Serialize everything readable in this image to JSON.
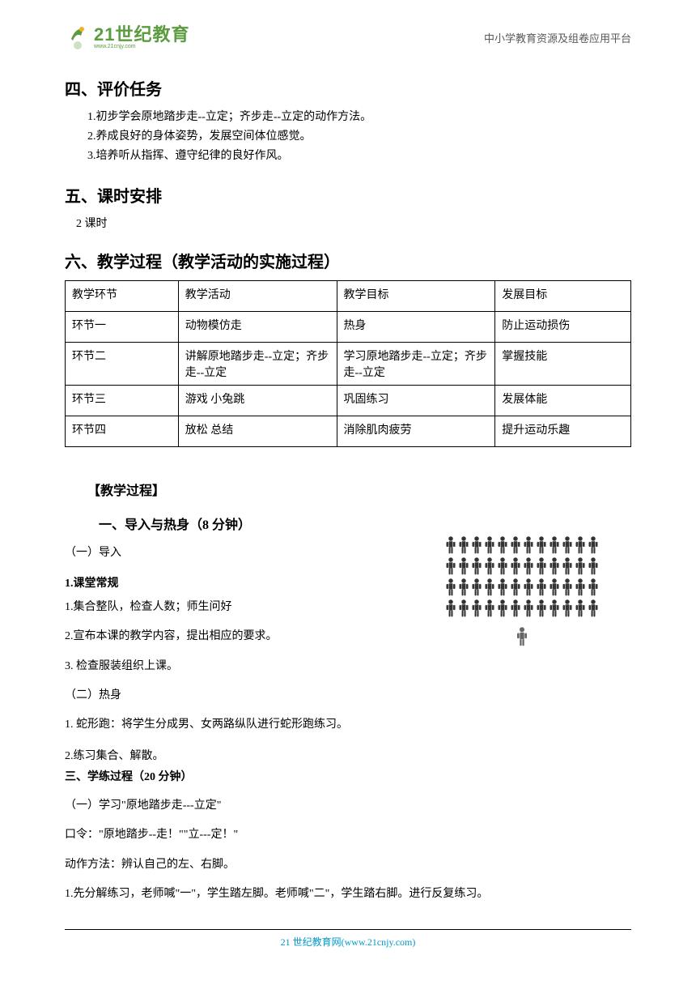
{
  "header": {
    "logo_main": "21世纪教育",
    "logo_sub": "www.21cnjy.com",
    "right_text": "中小学教育资源及组卷应用平台"
  },
  "section4": {
    "title": "四、评价任务",
    "items": [
      "1.初步学会原地踏步走--立定；齐步走--立定的动作方法。",
      "2.养成良好的身体姿势，发展空间体位感觉。",
      "3.培养听从指挥、遵守纪律的良好作风。"
    ]
  },
  "section5": {
    "title": "五、课时安排",
    "text": "2 课时"
  },
  "section6": {
    "title": "六、教学过程（教学活动的实施过程）"
  },
  "table": {
    "headers": [
      "教学环节",
      "教学活动",
      "教学目标",
      "发展目标"
    ],
    "rows": [
      [
        "环节一",
        "动物模仿走",
        "热身",
        "防止运动损伤"
      ],
      [
        "环节二",
        "讲解原地踏步走--立定；齐步走--立定",
        "学习原地踏步走--立定；齐步走--立定",
        "掌握技能"
      ],
      [
        "环节三",
        "游戏 小兔跳",
        "巩固练习",
        "发展体能"
      ],
      [
        "环节四",
        "放松 总结",
        "消除肌肉疲劳",
        "提升运动乐趣"
      ]
    ]
  },
  "lesson": {
    "heading": "【教学过程】",
    "part1_title": "一、导入与热身（8 分钟）",
    "intro_label": "（一）导入",
    "routine_label": "1.课堂常规",
    "routine_items": [
      "1.集合整队，检查人数；师生问好",
      "2.宣布本课的教学内容，提出相应的要求。",
      "3. 检查服装组织上课。"
    ],
    "warmup_label": "（二）热身",
    "warmup_items": [
      "1. 蛇形跑：将学生分成男、女两路纵队进行蛇形跑练习。",
      "2.练习集合、解散。"
    ],
    "part3_title": "三、学练过程（20 分钟）",
    "practice_items": [
      "（一）学习\"原地踏步走---立定\"",
      "口令：\"原地踏步--走！\"\"立---定！\"",
      "动作方法：辨认自己的左、右脚。",
      "1.先分解练习，老师喊\"一\"，学生踏左脚。老师喊\"二\"，学生踏右脚。进行反复练习。"
    ]
  },
  "formation": {
    "rows": 4,
    "cols": 12
  },
  "footer": {
    "text": "21 世纪教育网(www.21cnjy.com)"
  },
  "colors": {
    "logo_green": "#5a9c3e",
    "footer_blue": "#0099cc",
    "text_gray": "#595959",
    "black": "#000000",
    "icon_dark": "#333333"
  }
}
